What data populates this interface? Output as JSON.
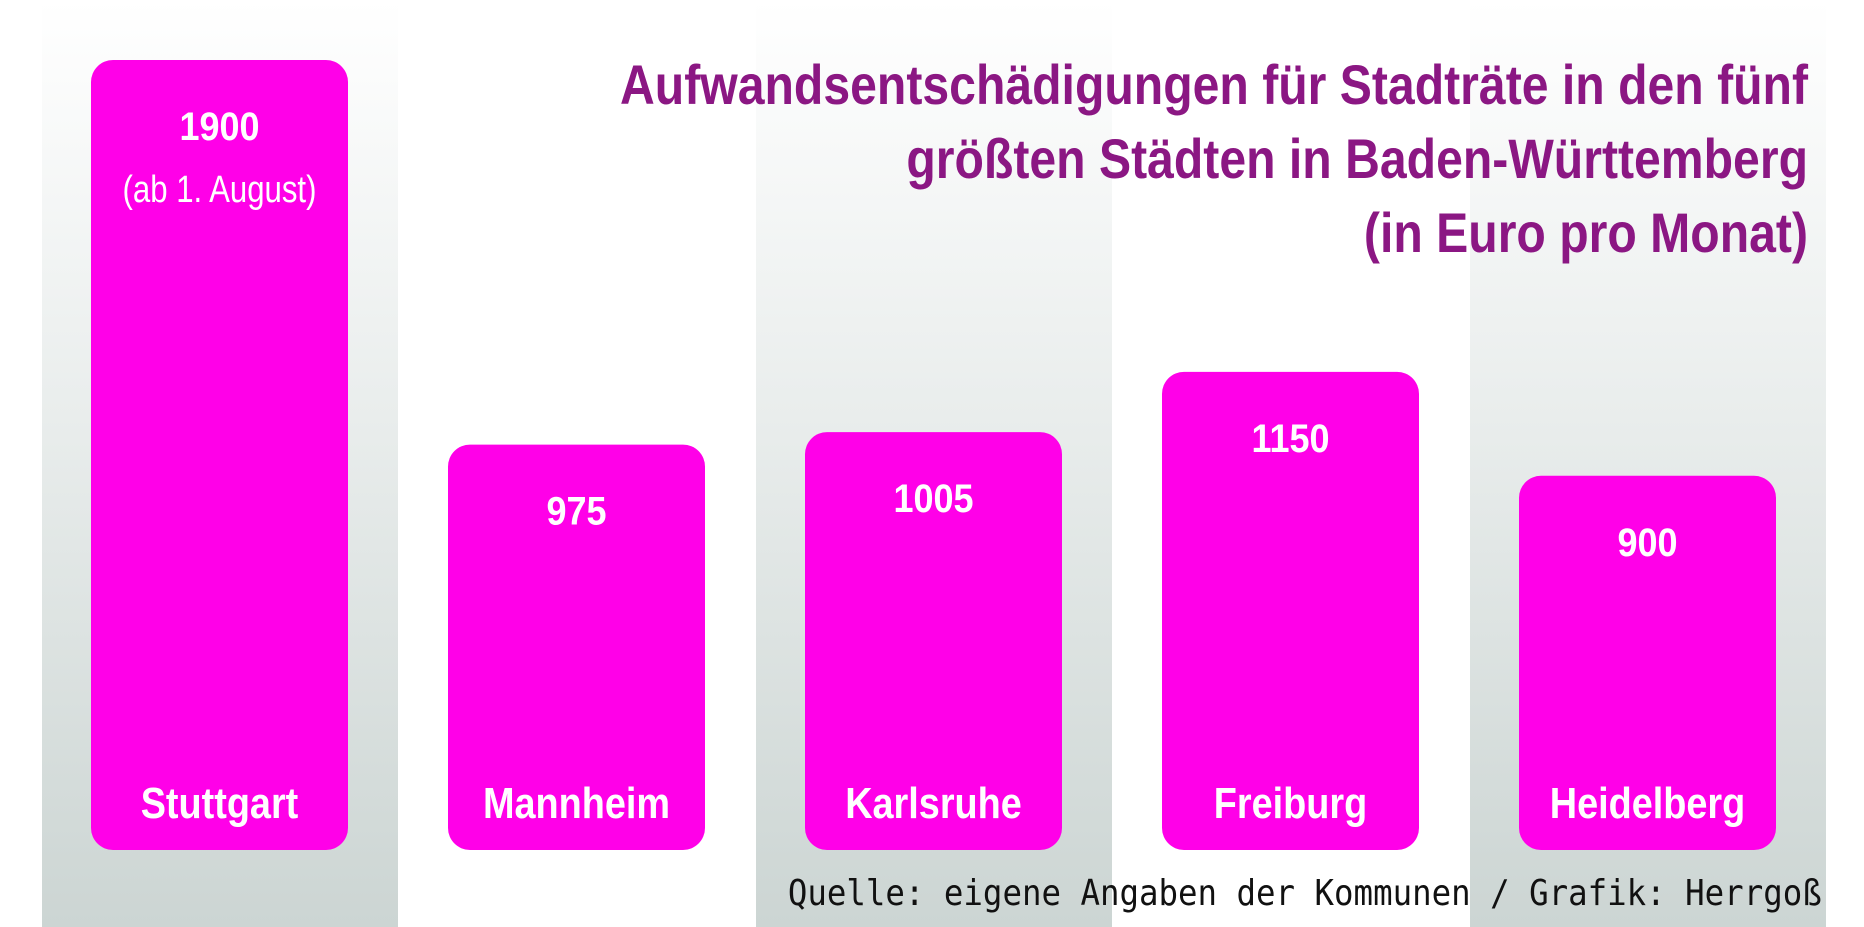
{
  "chart_data": {
    "type": "bar",
    "title_lines": [
      "Aufwandsentschädigungen für Stadträte in den fünf",
      "größten Städten in Baden-Württemberg",
      "(in Euro pro Monat)"
    ],
    "categories": [
      "Stuttgart",
      "Mannheim",
      "Karlsruhe",
      "Freiburg",
      "Heidelberg"
    ],
    "values": [
      1900,
      975,
      1005,
      1150,
      900
    ],
    "value_labels": [
      "1900",
      "975",
      "1005",
      "1150",
      "900"
    ],
    "value_notes": [
      "(ab 1. August)",
      "",
      "",
      "",
      ""
    ],
    "xlabel": "",
    "ylabel": "",
    "grid": false,
    "legend": "none"
  },
  "source": "Quelle: eigene Angaben der Kommunen / Grafik: Herrgoß",
  "colors": {
    "bar": "#ff00e8",
    "title": "#8b1783",
    "bar_text": "#ffffff",
    "band": "#dce3e1",
    "source_text": "#111111"
  }
}
